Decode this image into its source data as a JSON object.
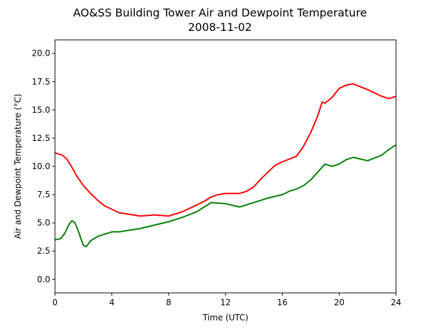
{
  "chart_data": {
    "type": "line",
    "title": "AO&SS Building Tower Air and Dewpoint Temperature",
    "subtitle": "2008-11-02",
    "xlabel": "Time (UTC)",
    "ylabel": "Air and Dewpoint Temperature (°C)",
    "xlim": [
      0,
      24
    ],
    "ylim": [
      -1.2,
      21.2
    ],
    "xticks": [
      0,
      4,
      8,
      12,
      16,
      20,
      24
    ],
    "xtick_labels": [
      "0",
      "4",
      "8",
      "12",
      "16",
      "20",
      "24"
    ],
    "yticks": [
      0.0,
      2.5,
      5.0,
      7.5,
      10.0,
      12.5,
      15.0,
      17.5,
      20.0
    ],
    "ytick_labels": [
      "0.0",
      "2.5",
      "5.0",
      "7.5",
      "10.0",
      "12.5",
      "15.0",
      "17.5",
      "20.0"
    ],
    "grid": false,
    "legend": "none",
    "series": [
      {
        "color": "#ff0000",
        "x": [
          0,
          0.5,
          0.8,
          1.0,
          1.2,
          1.5,
          2.0,
          2.5,
          3.0,
          3.5,
          4.0,
          4.5,
          5.0,
          6.0,
          7.0,
          8.0,
          9.0,
          10.0,
          10.5,
          11.0,
          11.5,
          12.0,
          13.0,
          13.5,
          14.0,
          14.5,
          15.0,
          15.5,
          16.0,
          17.0,
          17.5,
          18.0,
          18.5,
          18.8,
          19.0,
          19.5,
          20.0,
          20.5,
          21.0,
          22.0,
          23.0,
          23.5,
          24.0
        ],
        "y": [
          11.2,
          11.0,
          10.7,
          10.3,
          9.9,
          9.2,
          8.3,
          7.6,
          7.0,
          6.5,
          6.2,
          5.9,
          5.8,
          5.6,
          5.7,
          5.6,
          6.0,
          6.6,
          6.9,
          7.3,
          7.5,
          7.6,
          7.6,
          7.8,
          8.2,
          8.9,
          9.5,
          10.1,
          10.4,
          10.9,
          11.8,
          13.0,
          14.5,
          15.7,
          15.6,
          16.1,
          16.9,
          17.2,
          17.3,
          16.8,
          16.2,
          16.0,
          16.2
        ]
      },
      {
        "color": "#008000",
        "x": [
          0,
          0.4,
          0.7,
          1.0,
          1.2,
          1.4,
          1.6,
          1.8,
          2.0,
          2.2,
          2.5,
          3.0,
          3.5,
          4.0,
          4.5,
          5.0,
          6.0,
          7.0,
          8.0,
          9.0,
          10.0,
          10.5,
          11.0,
          12.0,
          13.0,
          14.0,
          15.0,
          16.0,
          16.5,
          17.0,
          17.5,
          18.0,
          18.5,
          19.0,
          19.5,
          20.0,
          20.5,
          21.0,
          22.0,
          23.0,
          23.5,
          24.0
        ],
        "y": [
          3.5,
          3.6,
          4.1,
          4.9,
          5.2,
          5.0,
          4.4,
          3.7,
          3.0,
          2.9,
          3.4,
          3.8,
          4.0,
          4.2,
          4.2,
          4.3,
          4.5,
          4.8,
          5.1,
          5.5,
          6.0,
          6.4,
          6.8,
          6.7,
          6.4,
          6.8,
          7.2,
          7.5,
          7.8,
          8.0,
          8.3,
          8.8,
          9.5,
          10.2,
          10.0,
          10.2,
          10.6,
          10.8,
          10.5,
          11.0,
          11.5,
          11.9
        ]
      }
    ]
  }
}
